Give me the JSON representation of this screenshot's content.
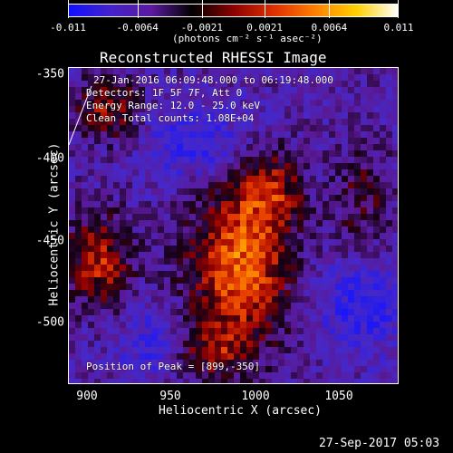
{
  "colorbar": {
    "gradient": [
      "#1010ff",
      "#4422cc",
      "#5b1aa0",
      "#000000",
      "#8b0000",
      "#e03000",
      "#ff8000",
      "#ffd000",
      "#ffffff"
    ],
    "ticks": [
      "-0.011",
      "-0.0064",
      "-0.0021",
      "0.0021",
      "0.0064",
      "0.011"
    ],
    "units": "(photons cm⁻² s⁻¹ asec⁻²)"
  },
  "title": "Reconstructed RHESSI Image",
  "info": {
    "time": "27-Jan-2016 06:09:48.000 to 06:19:48.000",
    "detectors": "Detectors: 1F 5F 7F, Att 0",
    "energy": "Energy Range: 12.0 - 25.0 keV",
    "method": "Clean    Total counts: 1.08E+04",
    "peak": "Position of Peak = [899,-350]"
  },
  "axes": {
    "xlabel": "Heliocentric X (arcsec)",
    "ylabel": "Heliocentric Y (arcsec)",
    "xticks": [
      "900",
      "950",
      "1000",
      "1050"
    ],
    "yticks": [
      "-350",
      "-400",
      "-450",
      "-500"
    ]
  },
  "timestamp": "27-Sep-2017 05:03"
}
